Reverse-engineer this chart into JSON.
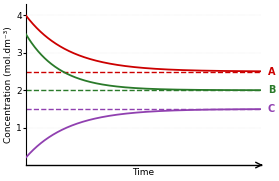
{
  "title": "",
  "xlabel": "Time",
  "ylabel": "Concentration (mol.dm⁻³)",
  "ylim": [
    0.0,
    4.3
  ],
  "xlim": [
    0,
    10
  ],
  "yticks": [
    1,
    2,
    3,
    4
  ],
  "curves": {
    "A": {
      "start": 4.0,
      "equilibrium": 2.5,
      "color": "#cc0000",
      "decay": true,
      "decay_rate": 0.55,
      "label": "A"
    },
    "B": {
      "start": 3.5,
      "equilibrium": 2.0,
      "color": "#2a7a2a",
      "decay": true,
      "decay_rate": 0.7,
      "label": "B"
    },
    "C": {
      "start": 0.2,
      "equilibrium": 1.5,
      "color": "#9040b0",
      "decay": false,
      "decay_rate": 0.55,
      "label": "C"
    }
  },
  "background_color": "#ffffff",
  "grid_color": "#c8c8c8",
  "label_fontsize": 7,
  "axis_label_fontsize": 6.5,
  "tick_fontsize": 6.5,
  "curve_linewidth": 1.3,
  "dash_linewidth": 1.0
}
